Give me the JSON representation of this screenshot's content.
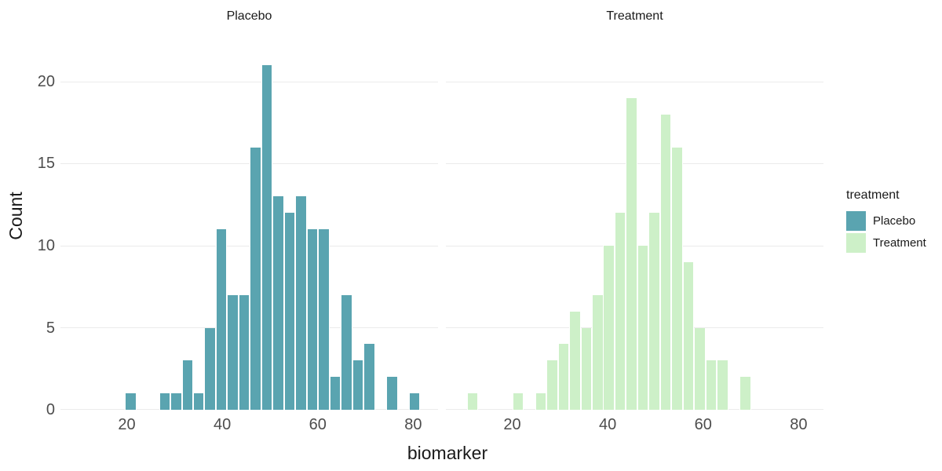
{
  "chart_data": {
    "type": "bar",
    "subtype": "faceted-histogram",
    "xlabel": "biomarker",
    "ylabel": "Count",
    "x_ticks": [
      20,
      40,
      60,
      80
    ],
    "y_ticks": [
      0,
      5,
      10,
      15,
      20
    ],
    "x_range": [
      6.1,
      85.2
    ],
    "y_range": [
      0,
      22.1
    ],
    "grid": "horizontal-only",
    "grid_color": "#ebebeb",
    "tick_label_color": "#4d4d4d",
    "text_color": "#1a1a1a",
    "background_color": "#ffffff",
    "facets": [
      {
        "label": "Placebo",
        "color": "#5aa4b0",
        "bin_start": 19.6,
        "binwidth": 2.38,
        "counts": [
          1,
          0,
          0,
          1,
          1,
          3,
          1,
          5,
          11,
          7,
          7,
          16,
          21,
          13,
          12,
          13,
          11,
          11,
          2,
          7,
          3,
          4,
          0,
          2,
          0,
          1
        ]
      },
      {
        "label": "Treatment",
        "color": "#cdf0c8",
        "bin_start": 10.5,
        "binwidth": 2.38,
        "counts": [
          1,
          0,
          0,
          0,
          1,
          0,
          1,
          3,
          4,
          6,
          5,
          7,
          10,
          12,
          19,
          10,
          12,
          18,
          16,
          9,
          5,
          3,
          3,
          0,
          2
        ]
      }
    ],
    "legend": {
      "title": "treatment",
      "position": "right",
      "entries": [
        {
          "label": "Placebo",
          "color": "#5aa4b0"
        },
        {
          "label": "Treatment",
          "color": "#cdf0c8"
        }
      ]
    }
  }
}
